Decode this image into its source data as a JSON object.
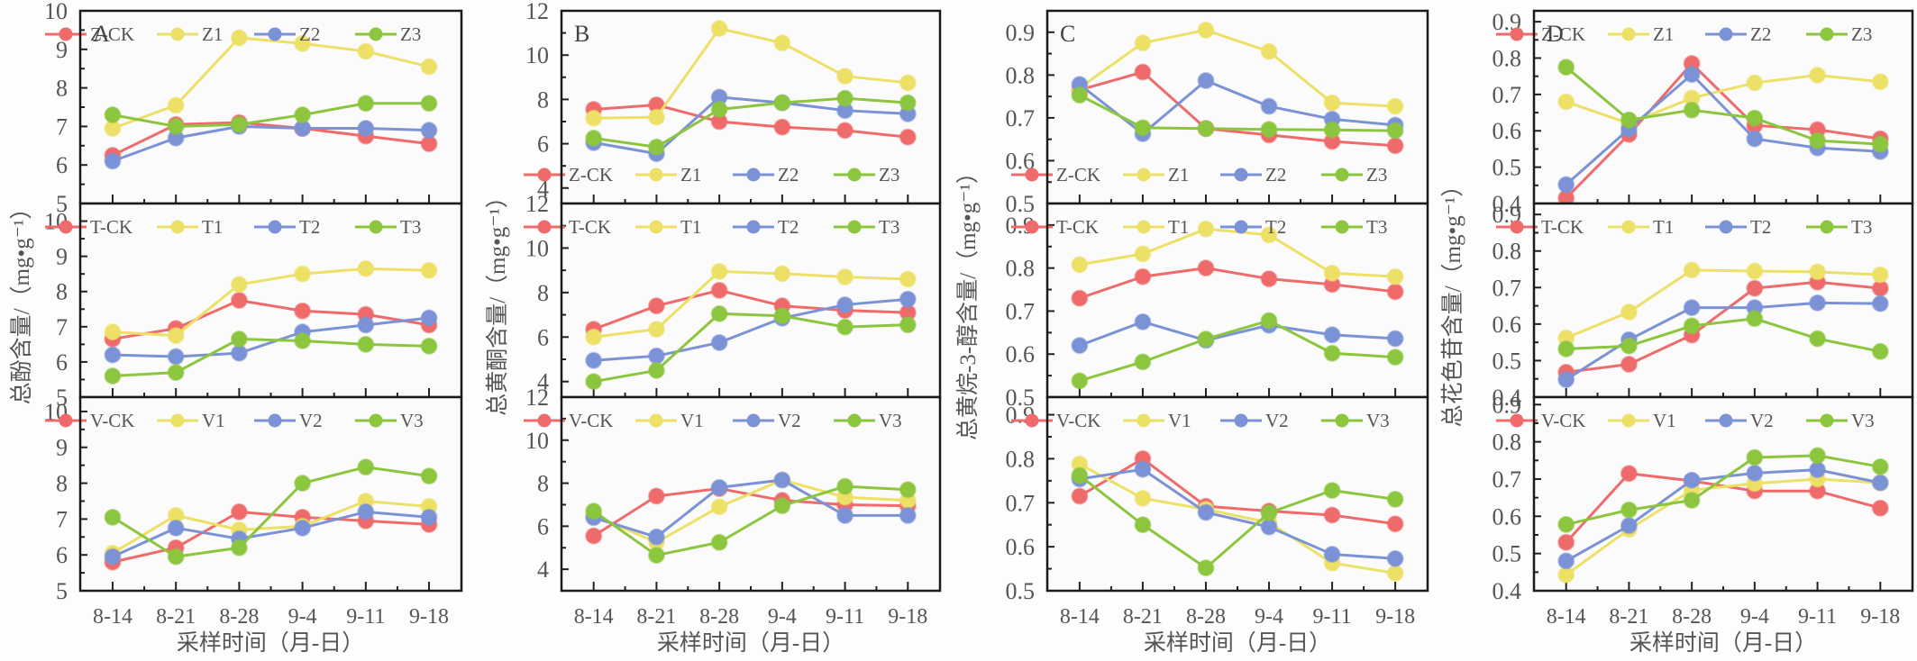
{
  "figure": {
    "columns": [
      {
        "letter": "A",
        "ylabel": "总酚含量/（mg•g⁻¹）",
        "legend_pos": "top-right"
      },
      {
        "letter": "B",
        "ylabel": "总黄酮含量/（mg•g⁻¹）",
        "legend_pos": "bottom-right"
      },
      {
        "letter": "C",
        "ylabel": "总黄烷-3-醇含量/（mg•g⁻¹）",
        "legend_pos": "bottom-right"
      },
      {
        "letter": "D",
        "ylabel": "总花色苷含量/（mg•g⁻¹）",
        "legend_pos": "top-right"
      }
    ],
    "xlabel": "采样时间（月-日）",
    "series_colors": {
      "CK": "#ef6b6b",
      "1": "#ede066",
      "2": "#7b93d6",
      "3": "#8cc63f"
    }
  },
  "chart_data": [
    {
      "type": "line",
      "panel": "A",
      "group": "Z",
      "title": "A",
      "xlabel": "",
      "ylabel": "总酚含量/（mg•g⁻¹）",
      "categories": [
        "8-14",
        "8-21",
        "8-28",
        "9-4",
        "9-11",
        "9-18"
      ],
      "ylim": [
        5,
        10
      ],
      "yticks": [
        "5",
        "6",
        "7",
        "8",
        "9",
        "10"
      ],
      "legend": "top-right",
      "grid": false,
      "series": [
        {
          "name": "Z-CK",
          "key": "CK",
          "values": [
            6.25,
            7.05,
            7.1,
            6.95,
            6.75,
            6.55
          ]
        },
        {
          "name": "Z1",
          "key": "1",
          "values": [
            6.95,
            7.55,
            9.3,
            9.15,
            8.95,
            8.55
          ]
        },
        {
          "name": "Z2",
          "key": "2",
          "values": [
            6.1,
            6.7,
            7.0,
            6.95,
            6.95,
            6.9
          ]
        },
        {
          "name": "Z3",
          "key": "3",
          "values": [
            7.3,
            7.0,
            7.05,
            7.3,
            7.6,
            7.6
          ]
        }
      ]
    },
    {
      "type": "line",
      "panel": "A",
      "group": "T",
      "title": "",
      "xlabel": "",
      "ylabel": "",
      "categories": [
        "8-14",
        "8-21",
        "8-28",
        "9-4",
        "9-11",
        "9-18"
      ],
      "ylim": [
        5,
        10.5
      ],
      "yticks": [
        "5",
        "6",
        "7",
        "8",
        "9",
        "10"
      ],
      "legend": "top-right",
      "grid": false,
      "series": [
        {
          "name": "T-CK",
          "key": "CK",
          "values": [
            6.65,
            6.95,
            7.75,
            7.45,
            7.35,
            7.05
          ]
        },
        {
          "name": "T1",
          "key": "1",
          "values": [
            6.85,
            6.75,
            8.2,
            8.5,
            8.65,
            8.6
          ]
        },
        {
          "name": "T2",
          "key": "2",
          "values": [
            6.2,
            6.15,
            6.25,
            6.85,
            7.05,
            7.25
          ]
        },
        {
          "name": "T3",
          "key": "3",
          "values": [
            5.6,
            5.7,
            6.65,
            6.6,
            6.5,
            6.45
          ]
        }
      ]
    },
    {
      "type": "line",
      "panel": "A",
      "group": "V",
      "title": "",
      "xlabel": "采样时间（月-日）",
      "ylabel": "",
      "categories": [
        "8-14",
        "8-21",
        "8-28",
        "9-4",
        "9-11",
        "9-18"
      ],
      "ylim": [
        5,
        10.4
      ],
      "yticks": [
        "5",
        "6",
        "7",
        "8",
        "9",
        "10"
      ],
      "legend": "top-right",
      "grid": false,
      "series": [
        {
          "name": "V-CK",
          "key": "CK",
          "values": [
            5.8,
            6.2,
            7.2,
            7.05,
            6.95,
            6.85
          ]
        },
        {
          "name": "V1",
          "key": "1",
          "values": [
            6.05,
            7.1,
            6.7,
            6.8,
            7.5,
            7.35
          ]
        },
        {
          "name": "V2",
          "key": "2",
          "values": [
            5.95,
            6.75,
            6.45,
            6.75,
            7.2,
            7.05
          ]
        },
        {
          "name": "V3",
          "key": "3",
          "values": [
            7.05,
            5.95,
            6.2,
            8.0,
            8.45,
            8.2
          ]
        }
      ]
    },
    {
      "type": "line",
      "panel": "B",
      "group": "Z",
      "title": "B",
      "xlabel": "",
      "ylabel": "总黄酮含量/（mg•g⁻¹）",
      "categories": [
        "8-14",
        "8-21",
        "8-28",
        "9-4",
        "9-11",
        "9-18"
      ],
      "ylim": [
        3.3,
        12
      ],
      "yticks": [
        "4",
        "6",
        "8",
        "10",
        "12"
      ],
      "legend": "bottom-right",
      "grid": false,
      "series": [
        {
          "name": "Z-CK",
          "key": "CK",
          "values": [
            7.55,
            7.75,
            7.0,
            6.75,
            6.6,
            6.3
          ]
        },
        {
          "name": "Z1",
          "key": "1",
          "values": [
            7.15,
            7.2,
            11.2,
            10.55,
            9.05,
            8.75
          ]
        },
        {
          "name": "Z2",
          "key": "2",
          "values": [
            6.05,
            5.55,
            8.1,
            7.85,
            7.5,
            7.35
          ]
        },
        {
          "name": "Z3",
          "key": "3",
          "values": [
            6.25,
            5.85,
            7.55,
            7.85,
            8.05,
            7.85
          ]
        }
      ]
    },
    {
      "type": "line",
      "panel": "B",
      "group": "T",
      "title": "",
      "xlabel": "",
      "ylabel": "",
      "categories": [
        "8-14",
        "8-21",
        "8-28",
        "9-4",
        "9-11",
        "9-18"
      ],
      "ylim": [
        3.3,
        12
      ],
      "yticks": [
        "4",
        "6",
        "8",
        "10",
        "12"
      ],
      "legend": "top-right",
      "grid": false,
      "series": [
        {
          "name": "T-CK",
          "key": "CK",
          "values": [
            6.35,
            7.4,
            8.1,
            7.4,
            7.2,
            7.1
          ]
        },
        {
          "name": "T1",
          "key": "1",
          "values": [
            6.0,
            6.35,
            8.95,
            8.85,
            8.7,
            8.6
          ]
        },
        {
          "name": "T2",
          "key": "2",
          "values": [
            4.95,
            5.15,
            5.75,
            6.85,
            7.45,
            7.7
          ]
        },
        {
          "name": "T3",
          "key": "3",
          "values": [
            4.0,
            4.5,
            7.05,
            6.95,
            6.45,
            6.55
          ]
        }
      ]
    },
    {
      "type": "line",
      "panel": "B",
      "group": "V",
      "title": "",
      "xlabel": "采样时间（月-日）",
      "ylabel": "",
      "categories": [
        "8-14",
        "8-21",
        "8-28",
        "9-4",
        "9-11",
        "9-18"
      ],
      "ylim": [
        3,
        12
      ],
      "yticks": [
        "4",
        "6",
        "8",
        "10",
        "12"
      ],
      "legend": "top-right",
      "grid": false,
      "series": [
        {
          "name": "V-CK",
          "key": "CK",
          "values": [
            5.55,
            7.4,
            7.75,
            7.2,
            7.0,
            6.95
          ]
        },
        {
          "name": "V1",
          "key": "1",
          "values": [
            6.5,
            5.25,
            6.9,
            8.15,
            7.35,
            7.2
          ]
        },
        {
          "name": "V2",
          "key": "2",
          "values": [
            6.4,
            5.5,
            7.8,
            8.15,
            6.5,
            6.5
          ]
        },
        {
          "name": "V3",
          "key": "3",
          "values": [
            6.7,
            4.65,
            5.25,
            6.95,
            7.85,
            7.7
          ]
        }
      ]
    },
    {
      "type": "line",
      "panel": "C",
      "group": "Z",
      "title": "C",
      "xlabel": "",
      "ylabel": "总黄烷-3-醇含量/（mg•g⁻¹）",
      "categories": [
        "8-14",
        "8-21",
        "8-28",
        "9-4",
        "9-11",
        "9-18"
      ],
      "ylim": [
        0.5,
        0.95
      ],
      "yticks": [
        "0.5",
        "0.6",
        "0.7",
        "0.8",
        "0.9"
      ],
      "legend": "bottom-right",
      "grid": false,
      "series": [
        {
          "name": "Z-CK",
          "key": "CK",
          "values": [
            0.765,
            0.807,
            0.675,
            0.66,
            0.645,
            0.635
          ]
        },
        {
          "name": "Z1",
          "key": "1",
          "values": [
            0.77,
            0.875,
            0.905,
            0.855,
            0.735,
            0.727
          ]
        },
        {
          "name": "Z2",
          "key": "2",
          "values": [
            0.778,
            0.663,
            0.787,
            0.727,
            0.697,
            0.683
          ]
        },
        {
          "name": "Z3",
          "key": "3",
          "values": [
            0.753,
            0.677,
            0.675,
            0.673,
            0.672,
            0.67
          ]
        }
      ]
    },
    {
      "type": "line",
      "panel": "C",
      "group": "T",
      "title": "",
      "xlabel": "",
      "ylabel": "",
      "categories": [
        "8-14",
        "8-21",
        "8-28",
        "9-4",
        "9-11",
        "9-18"
      ],
      "ylim": [
        0.5,
        0.95
      ],
      "yticks": [
        "0.5",
        "0.6",
        "0.7",
        "0.8",
        "0.9"
      ],
      "legend": "top-right",
      "grid": false,
      "series": [
        {
          "name": "T-CK",
          "key": "CK",
          "values": [
            0.73,
            0.78,
            0.8,
            0.775,
            0.762,
            0.745
          ]
        },
        {
          "name": "T1",
          "key": "1",
          "values": [
            0.808,
            0.833,
            0.891,
            0.877,
            0.788,
            0.78
          ]
        },
        {
          "name": "T2",
          "key": "2",
          "values": [
            0.62,
            0.675,
            0.632,
            0.667,
            0.645,
            0.636
          ]
        },
        {
          "name": "T3",
          "key": "3",
          "values": [
            0.538,
            0.582,
            0.635,
            0.678,
            0.602,
            0.593
          ]
        }
      ]
    },
    {
      "type": "line",
      "panel": "C",
      "group": "V",
      "title": "",
      "xlabel": "采样时间（月-日）",
      "ylabel": "",
      "categories": [
        "8-14",
        "8-21",
        "8-28",
        "9-4",
        "9-11",
        "9-18"
      ],
      "ylim": [
        0.5,
        0.94
      ],
      "yticks": [
        "0.5",
        "0.6",
        "0.7",
        "0.8",
        "0.9"
      ],
      "legend": "top-right",
      "grid": false,
      "series": [
        {
          "name": "V-CK",
          "key": "CK",
          "values": [
            0.715,
            0.8,
            0.692,
            0.681,
            0.672,
            0.652
          ]
        },
        {
          "name": "V1",
          "key": "1",
          "values": [
            0.788,
            0.71,
            0.685,
            0.655,
            0.563,
            0.54
          ]
        },
        {
          "name": "V2",
          "key": "2",
          "values": [
            0.754,
            0.776,
            0.678,
            0.645,
            0.583,
            0.573
          ]
        },
        {
          "name": "V3",
          "key": "3",
          "values": [
            0.762,
            0.65,
            0.552,
            0.677,
            0.728,
            0.708
          ]
        }
      ]
    },
    {
      "type": "line",
      "panel": "D",
      "group": "Z",
      "title": "D",
      "xlabel": "",
      "ylabel": "总花色苷含量/（mg•g⁻¹）",
      "categories": [
        "8-14",
        "8-21",
        "8-28",
        "9-4",
        "9-11",
        "9-18"
      ],
      "ylim": [
        0.4,
        0.93
      ],
      "yticks": [
        "0.4",
        "0.5",
        "0.6",
        "0.7",
        "0.8",
        "0.9"
      ],
      "legend": "top-right",
      "grid": false,
      "series": [
        {
          "name": "Z-CK",
          "key": "CK",
          "values": [
            0.415,
            0.59,
            0.785,
            0.615,
            0.603,
            0.578
          ]
        },
        {
          "name": "Z1",
          "key": "1",
          "values": [
            0.68,
            0.62,
            0.69,
            0.732,
            0.753,
            0.735
          ]
        },
        {
          "name": "Z2",
          "key": "2",
          "values": [
            0.452,
            0.605,
            0.755,
            0.578,
            0.553,
            0.543
          ]
        },
        {
          "name": "Z3",
          "key": "3",
          "values": [
            0.775,
            0.63,
            0.657,
            0.635,
            0.573,
            0.563
          ]
        }
      ]
    },
    {
      "type": "line",
      "panel": "D",
      "group": "T",
      "title": "",
      "xlabel": "",
      "ylabel": "",
      "categories": [
        "8-14",
        "8-21",
        "8-28",
        "9-4",
        "9-11",
        "9-18"
      ],
      "ylim": [
        0.4,
        0.93
      ],
      "yticks": [
        "0.4",
        "0.5",
        "0.6",
        "0.7",
        "0.8",
        "0.9"
      ],
      "legend": "top-right",
      "grid": false,
      "series": [
        {
          "name": "T-CK",
          "key": "CK",
          "values": [
            0.468,
            0.49,
            0.57,
            0.698,
            0.715,
            0.698
          ]
        },
        {
          "name": "T1",
          "key": "1",
          "values": [
            0.562,
            0.633,
            0.748,
            0.745,
            0.743,
            0.735
          ]
        },
        {
          "name": "T2",
          "key": "2",
          "values": [
            0.448,
            0.557,
            0.645,
            0.645,
            0.658,
            0.656
          ]
        },
        {
          "name": "T3",
          "key": "3",
          "values": [
            0.532,
            0.54,
            0.595,
            0.615,
            0.56,
            0.525
          ]
        }
      ]
    },
    {
      "type": "line",
      "panel": "D",
      "group": "V",
      "title": "",
      "xlabel": "采样时间（月-日）",
      "ylabel": "",
      "categories": [
        "8-14",
        "8-21",
        "8-28",
        "9-4",
        "9-11",
        "9-18"
      ],
      "ylim": [
        0.4,
        0.92
      ],
      "yticks": [
        "0.4",
        "0.5",
        "0.6",
        "0.7",
        "0.8",
        "0.9"
      ],
      "legend": "top-right",
      "grid": false,
      "series": [
        {
          "name": "V-CK",
          "key": "CK",
          "values": [
            0.53,
            0.715,
            0.695,
            0.668,
            0.668,
            0.622
          ]
        },
        {
          "name": "V1",
          "key": "1",
          "values": [
            0.443,
            0.565,
            0.67,
            0.688,
            0.7,
            0.69
          ]
        },
        {
          "name": "V2",
          "key": "2",
          "values": [
            0.48,
            0.575,
            0.697,
            0.716,
            0.725,
            0.69
          ]
        },
        {
          "name": "V3",
          "key": "3",
          "values": [
            0.578,
            0.617,
            0.643,
            0.758,
            0.763,
            0.733
          ]
        }
      ]
    }
  ]
}
